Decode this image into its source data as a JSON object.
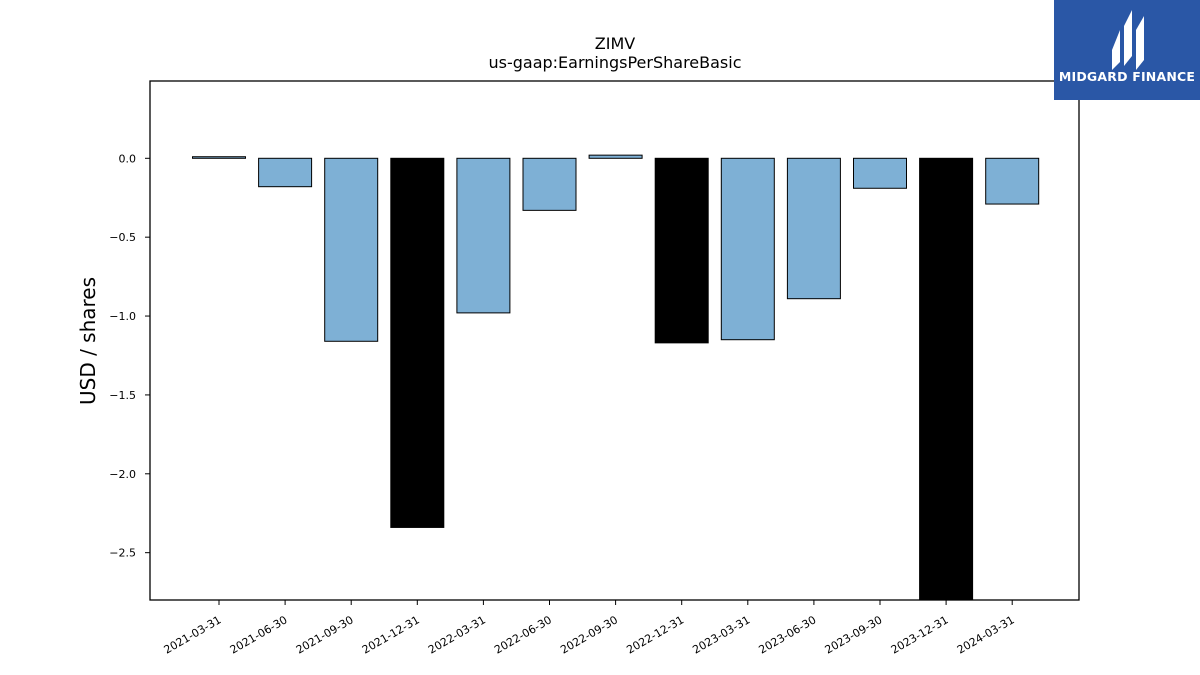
{
  "chart_data": {
    "type": "bar",
    "title": "ZIMV",
    "subtitle": "us-gaap:EarningsPerShareBasic",
    "xlabel": "",
    "ylabel": "USD / shares",
    "ylim": [
      -2.8,
      0.49
    ],
    "yticks": [
      0.0,
      -0.5,
      -1.0,
      -1.5,
      -2.0,
      -2.5
    ],
    "ytick_labels": [
      "0.0",
      "−0.5",
      "−1.0",
      "−1.5",
      "−2.0",
      "−2.5"
    ],
    "categories": [
      "2021-03-31",
      "2021-06-30",
      "2021-09-30",
      "2021-12-31",
      "2022-03-31",
      "2022-06-30",
      "2022-09-30",
      "2022-12-31",
      "2023-03-31",
      "2023-06-30",
      "2023-09-30",
      "2023-12-31",
      "2024-03-31"
    ],
    "values": [
      0.01,
      -0.18,
      -1.16,
      -2.34,
      -0.98,
      -0.33,
      0.02,
      -1.17,
      -1.15,
      -0.89,
      -0.19,
      -2.8,
      -0.29
    ],
    "bar_colors": [
      "#7eb0d5",
      "#7eb0d5",
      "#7eb0d5",
      "#000000",
      "#7eb0d5",
      "#7eb0d5",
      "#7eb0d5",
      "#000000",
      "#7eb0d5",
      "#7eb0d5",
      "#7eb0d5",
      "#000000",
      "#7eb0d5"
    ],
    "grid": false,
    "legend": "none"
  },
  "logo": {
    "text": "MIDGARD FINANCE",
    "color": "#2a57a6"
  }
}
